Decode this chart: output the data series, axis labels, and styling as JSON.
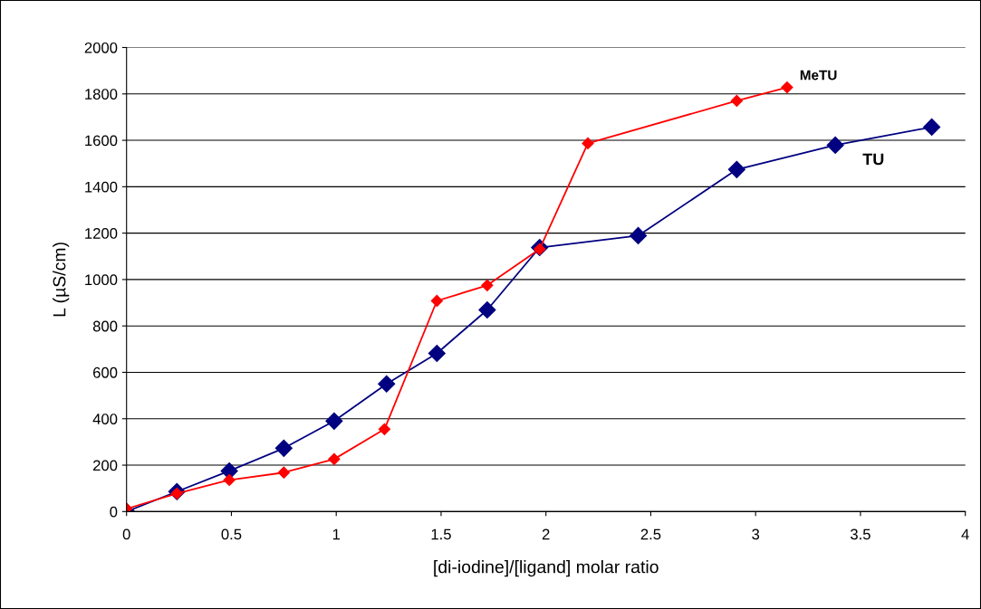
{
  "chart_data": {
    "type": "line",
    "xlabel": "[di-iodine]/[ligand] molar ratio",
    "ylabel": "L (µS/cm)",
    "xlim": [
      0,
      4
    ],
    "xticks": [
      0,
      0.5,
      1,
      1.5,
      2,
      2.5,
      3,
      3.5,
      4
    ],
    "ylim": [
      0,
      2000
    ],
    "yticks": [
      0,
      200,
      400,
      600,
      800,
      1000,
      1200,
      1400,
      1600,
      1800,
      2000
    ],
    "grid": "y",
    "legend": false,
    "marker": "diamond",
    "line_style": "solid",
    "series": [
      {
        "name": "TU",
        "color": "#000080",
        "x": [
          0,
          0.24,
          0.49,
          0.75,
          0.99,
          1.24,
          1.48,
          1.72,
          1.97,
          2.44,
          2.91,
          3.38,
          3.84
        ],
        "values": [
          0,
          86,
          175,
          273,
          390,
          550,
          682,
          869,
          1138,
          1189,
          1474,
          1579,
          1657
        ]
      },
      {
        "name": "MeTU",
        "color": "#ff0000",
        "x": [
          0,
          0.24,
          0.49,
          0.75,
          0.99,
          1.23,
          1.48,
          1.72,
          1.97,
          2.2,
          2.91,
          3.15
        ],
        "values": [
          12,
          78,
          136,
          168,
          226,
          355,
          908,
          975,
          1131,
          1587,
          1770,
          1828
        ]
      }
    ]
  }
}
